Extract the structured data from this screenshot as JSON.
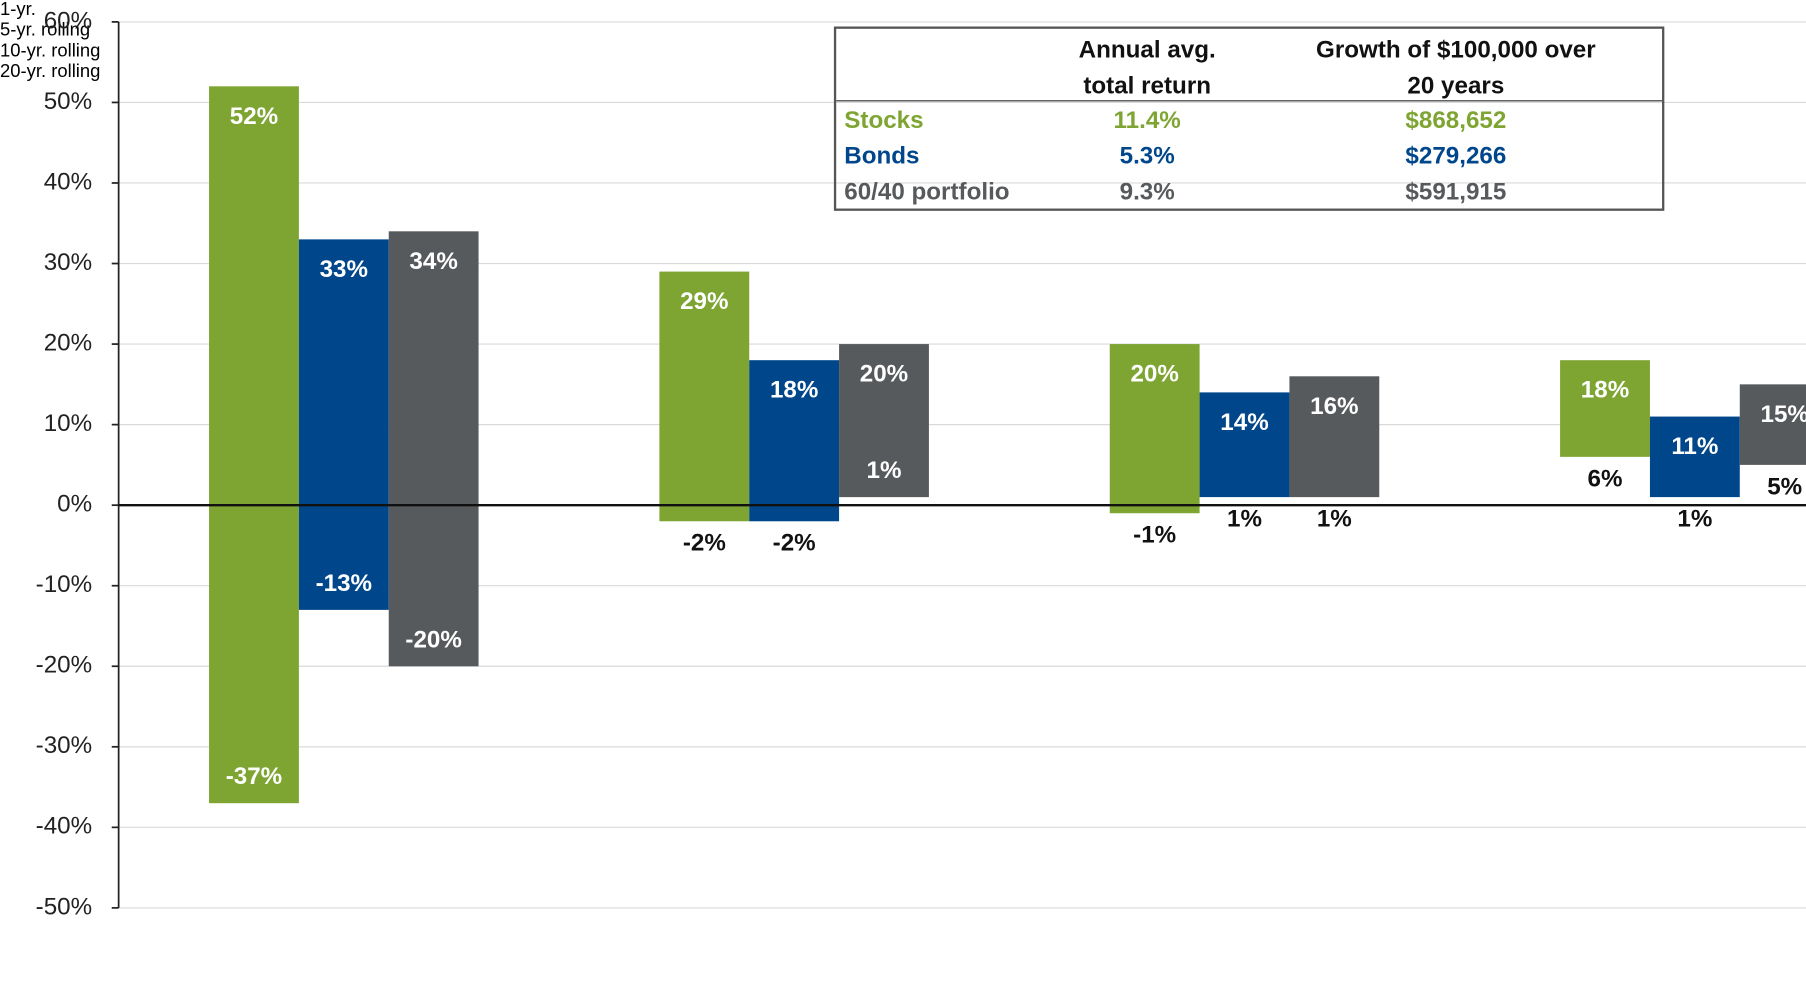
{
  "chart_data": {
    "type": "floating_bar",
    "categories": [
      "1-yr.",
      "5-yr.\nrolling",
      "10-yr.\nrolling",
      "20-yr.\nrolling"
    ],
    "series": [
      {
        "name": "Stocks",
        "color": "#7ea432",
        "values": [
          [
            -37,
            52
          ],
          [
            -2,
            29
          ],
          [
            -1,
            20
          ],
          [
            6,
            18
          ]
        ],
        "value_labels": [
          [
            "-37%",
            "52%"
          ],
          [
            "-2%",
            "29%"
          ],
          [
            "-1%",
            "20%"
          ],
          [
            "6%",
            "18%"
          ]
        ]
      },
      {
        "name": "Bonds",
        "color": "#00468b",
        "values": [
          [
            -13,
            33
          ],
          [
            -2,
            18
          ],
          [
            1,
            14
          ],
          [
            1,
            11
          ]
        ],
        "value_labels": [
          [
            "-13%",
            "33%"
          ],
          [
            "-2%",
            "18%"
          ],
          [
            "1%",
            "14%"
          ],
          [
            "1%",
            "11%"
          ]
        ]
      },
      {
        "name": "60/40 portfolio",
        "color": "#575a5c",
        "values": [
          [
            -20,
            34
          ],
          [
            1,
            20
          ],
          [
            1,
            16
          ],
          [
            5,
            15
          ]
        ],
        "value_labels": [
          [
            "-20%",
            "34%"
          ],
          [
            "1%",
            "20%"
          ],
          [
            "1%",
            "16%"
          ],
          [
            "5%",
            "15%"
          ]
        ]
      }
    ],
    "ylim": [
      -50,
      60
    ],
    "yticks": [
      {
        "value": -50,
        "label": "-50%"
      },
      {
        "value": -40,
        "label": "-40%"
      },
      {
        "value": -30,
        "label": "-30%"
      },
      {
        "value": -20,
        "label": "-20%"
      },
      {
        "value": -10,
        "label": "-10%"
      },
      {
        "value": 0,
        "label": "0%"
      },
      {
        "value": 10,
        "label": "10%"
      },
      {
        "value": 20,
        "label": "20%"
      },
      {
        "value": 30,
        "label": "30%"
      },
      {
        "value": 40,
        "label": "40%"
      },
      {
        "value": 50,
        "label": "50%"
      },
      {
        "value": 60,
        "label": "60%"
      }
    ],
    "grid": true,
    "table": {
      "columns": [
        "Annual avg.\ntotal return",
        "Growth of $100,000 over\n20 years"
      ],
      "rows": [
        [
          "Stocks",
          "11.4%",
          "$868,652"
        ],
        [
          "Bonds",
          "5.3%",
          "$279,266"
        ],
        [
          "60/40 portfolio",
          "9.3%",
          "$591,915"
        ]
      ]
    }
  }
}
